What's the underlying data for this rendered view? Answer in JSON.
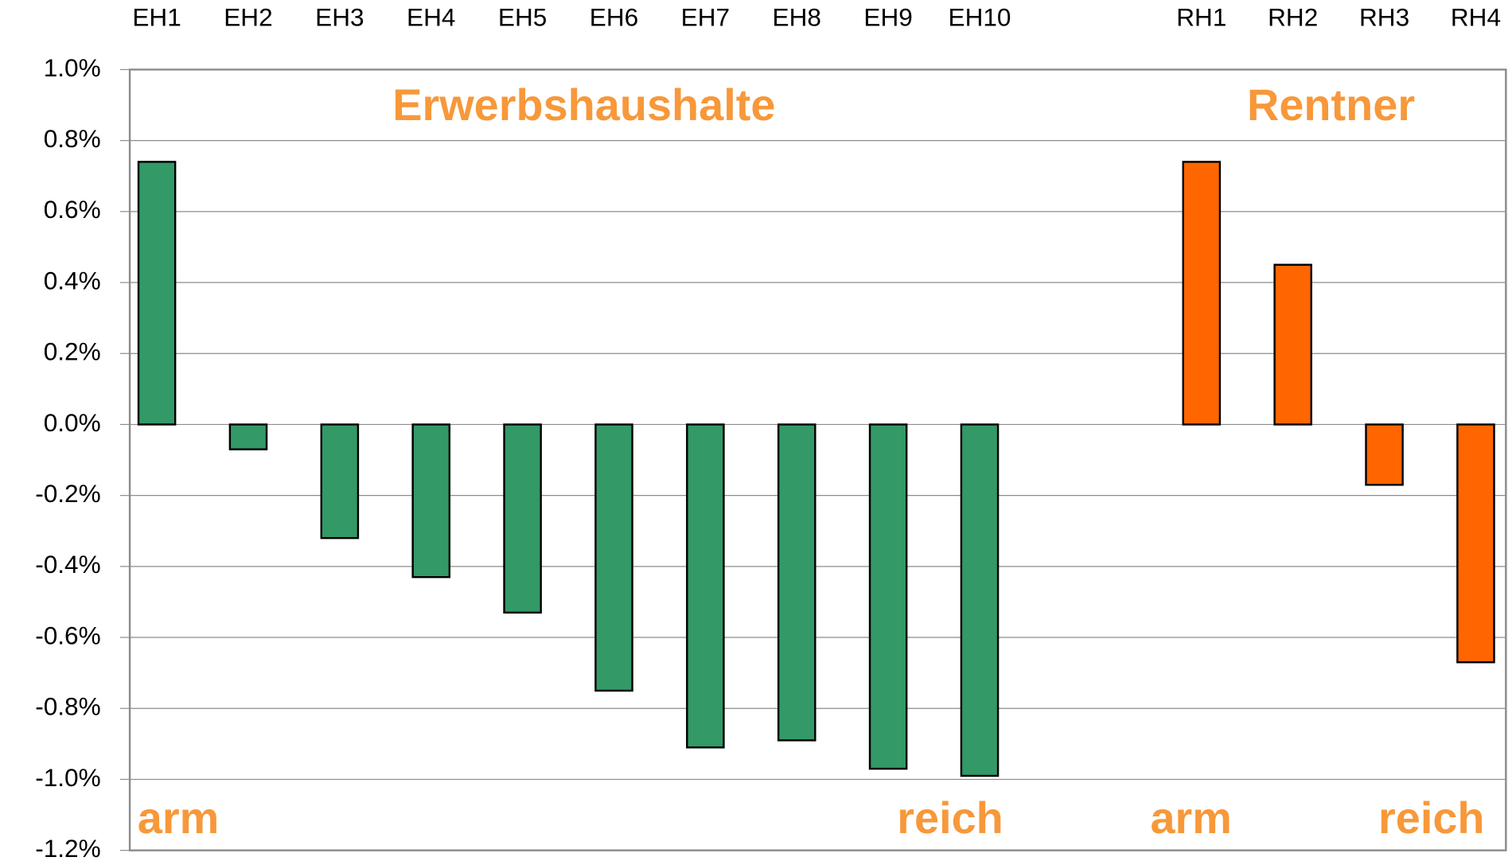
{
  "chart_data": {
    "type": "bar",
    "ylim": [
      -1.2,
      1.0
    ],
    "yticks": [
      {
        "value": 1.0,
        "label": "1.0%"
      },
      {
        "value": 0.8,
        "label": "0.8%"
      },
      {
        "value": 0.6,
        "label": "0.6%"
      },
      {
        "value": 0.4,
        "label": "0.4%"
      },
      {
        "value": 0.2,
        "label": "0.2%"
      },
      {
        "value": 0.0,
        "label": "0.0%"
      },
      {
        "value": -0.2,
        "label": "-0.2%"
      },
      {
        "value": -0.4,
        "label": "-0.4%"
      },
      {
        "value": -0.6,
        "label": "-0.6%"
      },
      {
        "value": -0.8,
        "label": "-0.8%"
      },
      {
        "value": -1.0,
        "label": "-1.0%"
      },
      {
        "value": -1.2,
        "label": "-1.2%"
      }
    ],
    "grid": true,
    "groups": [
      {
        "label": "Erwerbshaushalte",
        "color": "#339966",
        "low_label": "arm",
        "high_label": "reich",
        "categories": [
          "EH1",
          "EH2",
          "EH3",
          "EH4",
          "EH5",
          "EH6",
          "EH7",
          "EH8",
          "EH9",
          "EH10"
        ],
        "values": [
          0.74,
          -0.07,
          -0.32,
          -0.43,
          -0.53,
          -0.75,
          -0.91,
          -0.89,
          -0.97,
          -0.99
        ]
      },
      {
        "label": "Rentner",
        "color": "#ff6600",
        "low_label": "arm",
        "high_label": "reich",
        "categories": [
          "RH1",
          "RH2",
          "RH3",
          "RH4"
        ],
        "values": [
          0.74,
          0.45,
          -0.17,
          -0.67
        ]
      }
    ]
  }
}
